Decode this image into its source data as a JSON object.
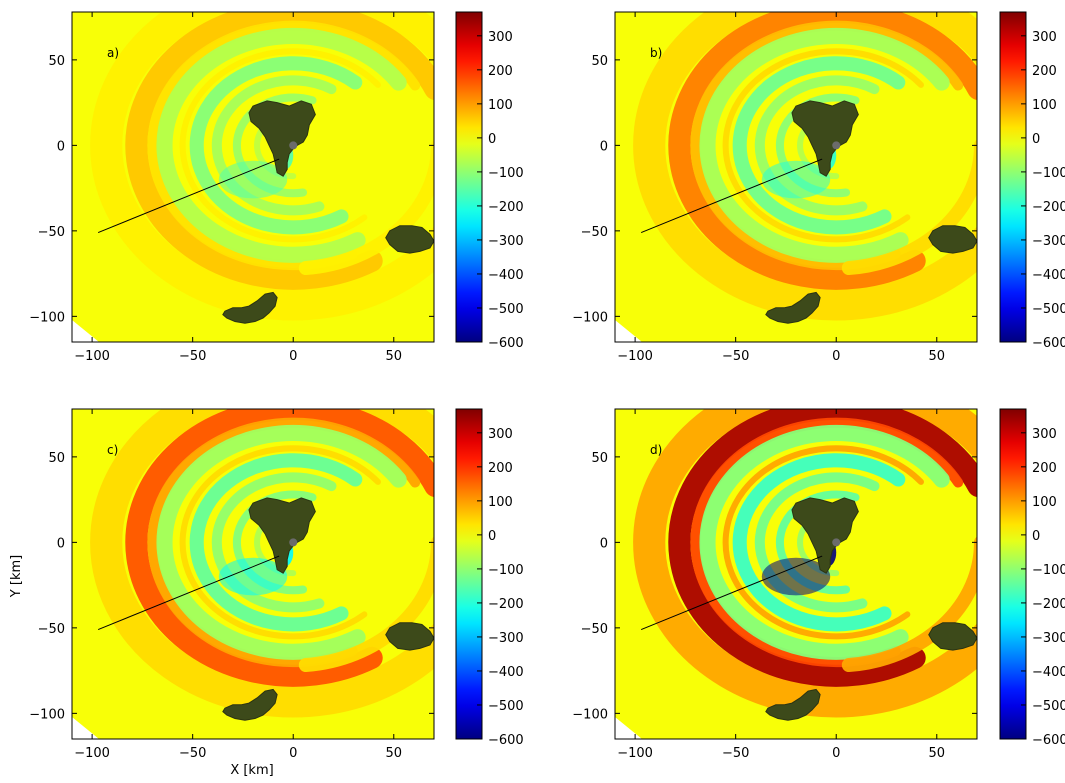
{
  "chart_data": {
    "type": "heatmap",
    "xlabel": "X [km]",
    "ylabel": "Y [km]",
    "xlim": [
      -110,
      70
    ],
    "ylim": [
      -115,
      78
    ],
    "xticks": [
      -100,
      -50,
      0,
      50
    ],
    "yticks": [
      -100,
      -50,
      0,
      50
    ],
    "colorbar": {
      "range": [
        -600,
        370
      ],
      "ticks": [
        300,
        200,
        100,
        0,
        -100,
        -200,
        -300,
        -400,
        -500,
        -600
      ],
      "colormap": "jet"
    },
    "islands": [
      {
        "name": "main",
        "points": [
          [
            -20,
            23
          ],
          [
            -13,
            26
          ],
          [
            -8,
            25
          ],
          [
            -2,
            23
          ],
          [
            4,
            26
          ],
          [
            9,
            24
          ],
          [
            11,
            18
          ],
          [
            8,
            12
          ],
          [
            7,
            6
          ],
          [
            5,
            2
          ],
          [
            2,
            0
          ],
          [
            0,
            -2
          ],
          [
            -2,
            -5
          ],
          [
            -3,
            -10
          ],
          [
            -3,
            -14
          ],
          [
            -5,
            -18
          ],
          [
            -8,
            -16
          ],
          [
            -9,
            -10
          ],
          [
            -10,
            -5
          ],
          [
            -12,
            0
          ],
          [
            -14,
            5
          ],
          [
            -17,
            10
          ],
          [
            -21,
            14
          ],
          [
            -22,
            19
          ]
        ]
      },
      {
        "name": "east",
        "points": [
          [
            48,
            -50
          ],
          [
            53,
            -47
          ],
          [
            59,
            -47
          ],
          [
            64,
            -48
          ],
          [
            68,
            -52
          ],
          [
            70,
            -56
          ],
          [
            68,
            -60
          ],
          [
            63,
            -62
          ],
          [
            58,
            -63
          ],
          [
            52,
            -62
          ],
          [
            48,
            -58
          ],
          [
            46,
            -54
          ]
        ]
      },
      {
        "name": "south",
        "points": [
          [
            -34,
            -97
          ],
          [
            -30,
            -95
          ],
          [
            -26,
            -95
          ],
          [
            -22,
            -94
          ],
          [
            -18,
            -91
          ],
          [
            -14,
            -87
          ],
          [
            -10,
            -86
          ],
          [
            -8,
            -89
          ],
          [
            -9,
            -94
          ],
          [
            -12,
            -98
          ],
          [
            -15,
            -101
          ],
          [
            -19,
            -103
          ],
          [
            -24,
            -104
          ],
          [
            -29,
            -103
          ],
          [
            -33,
            -101
          ],
          [
            -35,
            -99
          ]
        ]
      }
    ],
    "source_marker": [
      0,
      0
    ],
    "transect": [
      [
        -97,
        -51
      ],
      [
        -7,
        -8
      ]
    ],
    "panels": [
      {
        "label": "a)",
        "wave_amplitudes": {
          "front": 60,
          "inner_trough": -110,
          "inner_trough_min": -160,
          "outer_crest": 20
        }
      },
      {
        "label": "b)",
        "wave_amplitudes": {
          "front": 130,
          "inner_trough": -130,
          "inner_trough_min": -200,
          "outer_crest": 40
        }
      },
      {
        "label": "c)",
        "wave_amplitudes": {
          "front": 170,
          "inner_trough": -140,
          "inner_trough_min": -240,
          "outer_crest": 40
        }
      },
      {
        "label": "d)",
        "wave_amplitudes": {
          "front": 330,
          "inner_trough": -180,
          "inner_trough_min": -600,
          "outer_crest": 90
        }
      }
    ]
  }
}
